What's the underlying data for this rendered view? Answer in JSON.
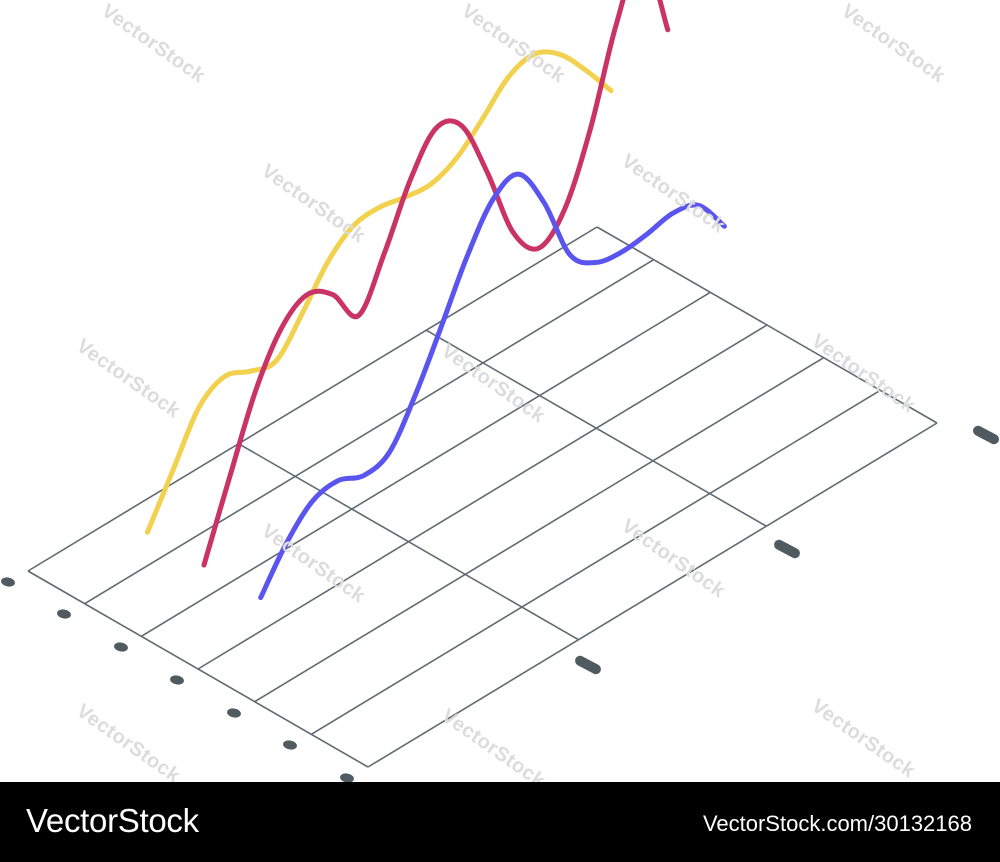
{
  "chart_data": {
    "type": "line",
    "title": "",
    "xlabel": "",
    "ylabel": "",
    "projection": "isometric",
    "grid": true,
    "legend": "none",
    "x": [
      0,
      0.5,
      1,
      1.5,
      2,
      2.5,
      3,
      3.5,
      4,
      4.5,
      5,
      5.5,
      6,
      6.5,
      7,
      7.5,
      8,
      8.5,
      9
    ],
    "ylim": [
      0,
      10
    ],
    "series": [
      {
        "color": "#f2d14e",
        "values": [
          0,
          1.8,
          3.6,
          4.2,
          3.8,
          3.6,
          4.8,
          6.2,
          7.0,
          7.1,
          6.9,
          6.8,
          7.2,
          8.1,
          9.1,
          9.4,
          8.8,
          7.6,
          6.2
        ]
      },
      {
        "color": "#c93366",
        "values": [
          0,
          2.8,
          5.5,
          7.3,
          8.0,
          7.4,
          6.0,
          7.8,
          10.0,
          11.4,
          10.9,
          8.5,
          5.6,
          4.4,
          5.3,
          7.8,
          11.2,
          13.3,
          9.8
        ]
      },
      {
        "color": "#5a55ee",
        "values": [
          0,
          1.5,
          2.5,
          2.7,
          2.3,
          2.6,
          4.2,
          6.2,
          8.3,
          9.9,
          10.3,
          8.6,
          6.0,
          5.1,
          4.9,
          5.0,
          5.2,
          4.9,
          3.5
        ]
      }
    ]
  },
  "footer": {
    "brand": "VectorStock",
    "credit": "VectorStock.com/30132168"
  },
  "watermark_text": "VectorStock",
  "colors": {
    "grid": "#5f6b72",
    "tick": "#4f5a61",
    "footer_bg": "#000000"
  }
}
